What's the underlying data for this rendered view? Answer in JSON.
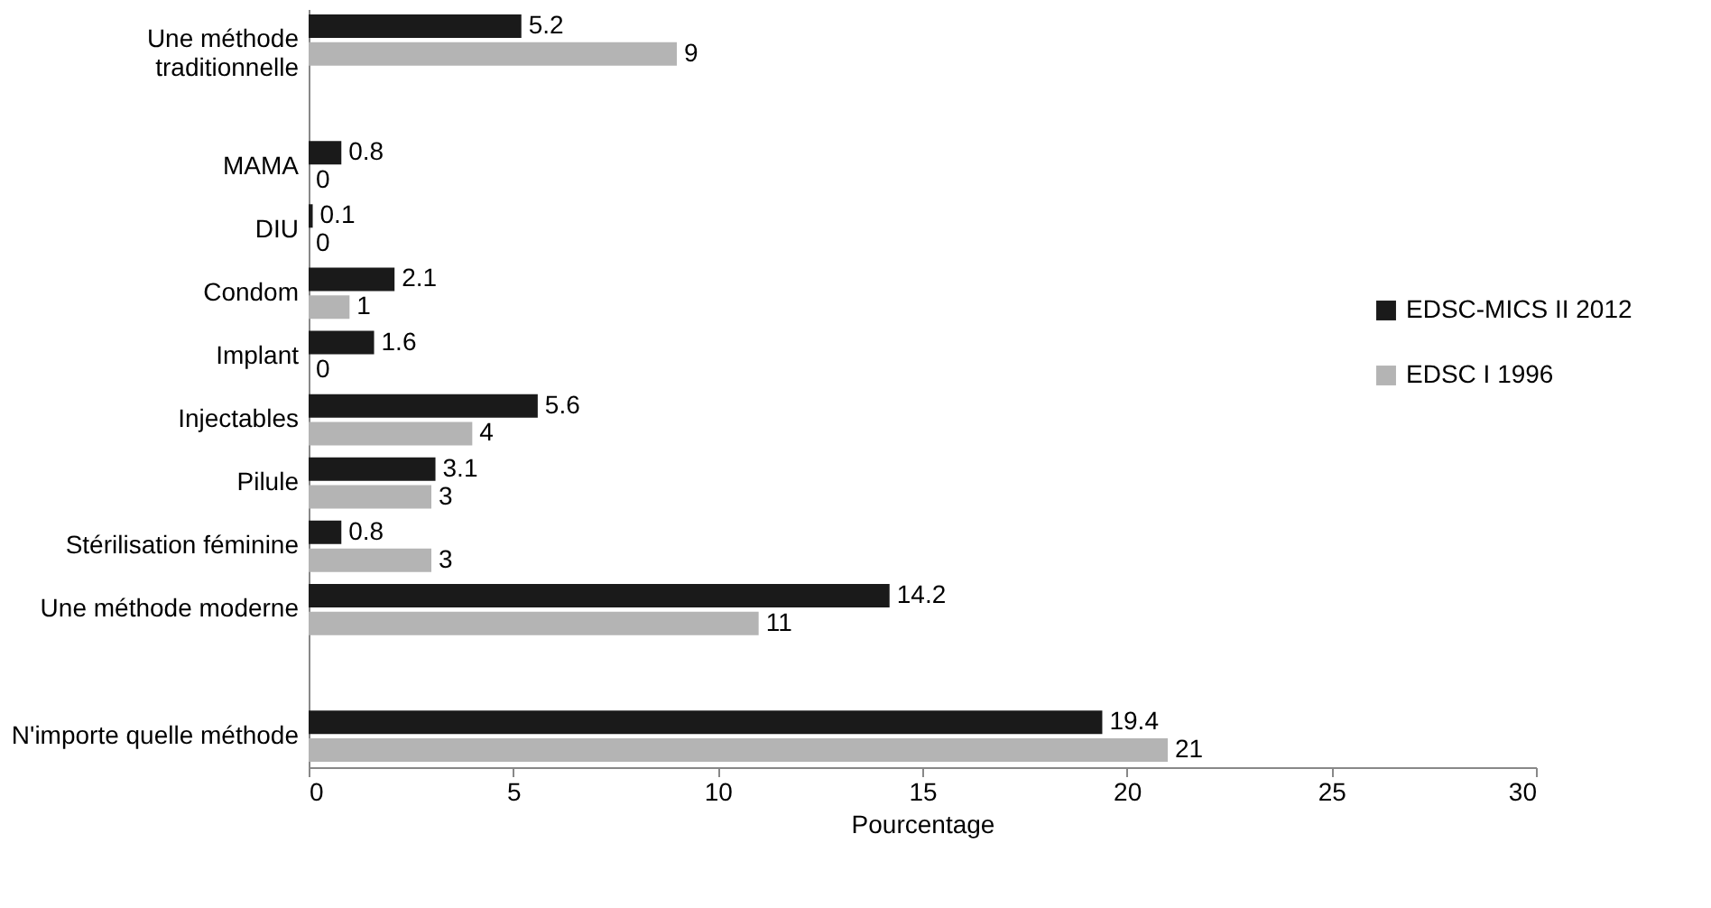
{
  "chart_data": {
    "type": "bar",
    "orientation": "horizontal",
    "xlabel": "Pourcentage",
    "categories": [
      "Une méthode traditionnelle",
      null,
      "MAMA",
      "DIU",
      "Condom",
      "Implant",
      "Injectables",
      "Pilule",
      "Stérilisation féminine",
      "Une méthode moderne",
      null,
      "N'importe quelle méthode"
    ],
    "series": [
      {
        "name": "EDSC-MICS II 2012",
        "color": "#1a1a1a",
        "values": [
          5.2,
          null,
          0.8,
          0.1,
          2.1,
          1.6,
          5.6,
          3.1,
          0.8,
          14.2,
          null,
          19.4
        ]
      },
      {
        "name": "EDSC I 1996",
        "color": "#b4b4b4",
        "values": [
          9,
          null,
          0,
          0,
          1,
          0,
          4,
          3,
          3,
          11,
          null,
          21
        ]
      }
    ],
    "xlim": [
      0,
      30
    ],
    "xticks": [
      0,
      5,
      10,
      15,
      20,
      25,
      30
    ],
    "grid": false,
    "legend": "right",
    "data_labels": true
  }
}
